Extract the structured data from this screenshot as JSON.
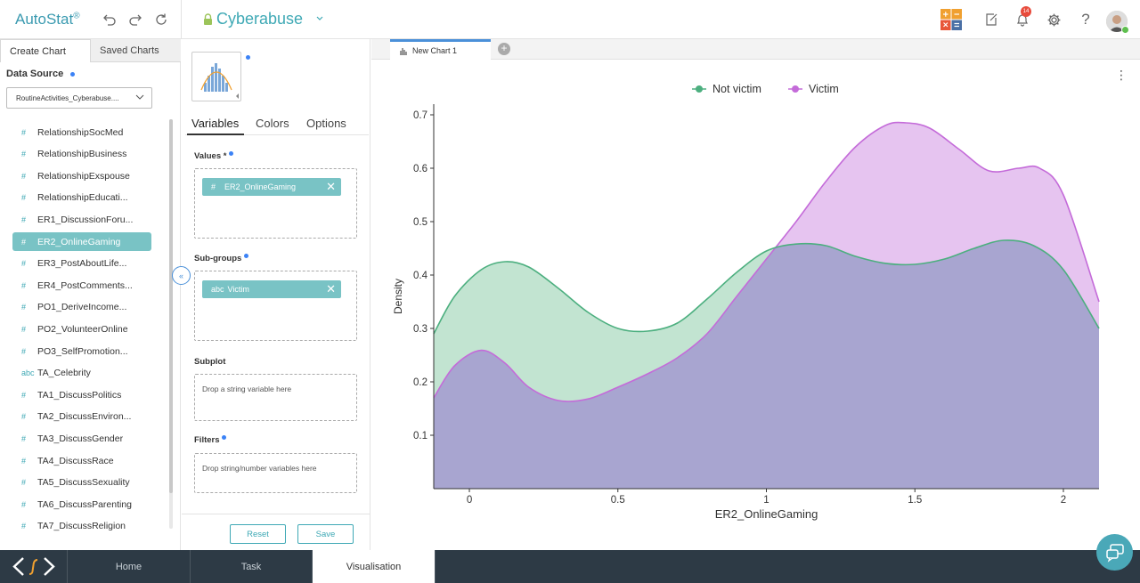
{
  "app": {
    "brand": "AutoStat",
    "brand_mark": "®",
    "project": "Cyberabuse",
    "notification_count": "14"
  },
  "left_panel": {
    "tabs": [
      "Create Chart",
      "Saved Charts"
    ],
    "data_source_label": "Data Source",
    "data_source_value": "RoutineActivities_Cyberabuse....",
    "variables": [
      {
        "type": "#",
        "name": "RelationshipSocMed"
      },
      {
        "type": "#",
        "name": "RelationshipBusiness"
      },
      {
        "type": "#",
        "name": "RelationshipExspouse"
      },
      {
        "type": "#",
        "name": "RelationshipEducati..."
      },
      {
        "type": "#",
        "name": "ER1_DiscussionForu..."
      },
      {
        "type": "#",
        "name": "ER2_OnlineGaming",
        "selected": true
      },
      {
        "type": "#",
        "name": "ER3_PostAboutLife..."
      },
      {
        "type": "#",
        "name": "ER4_PostComments..."
      },
      {
        "type": "#",
        "name": "PO1_DeriveIncome..."
      },
      {
        "type": "#",
        "name": "PO2_VolunteerOnline"
      },
      {
        "type": "#",
        "name": "PO3_SelfPromotion..."
      },
      {
        "type": "abc",
        "name": "TA_Celebrity"
      },
      {
        "type": "#",
        "name": "TA1_DiscussPolitics"
      },
      {
        "type": "#",
        "name": "TA2_DiscussEnviron..."
      },
      {
        "type": "#",
        "name": "TA3_DiscussGender"
      },
      {
        "type": "#",
        "name": "TA4_DiscussRace"
      },
      {
        "type": "#",
        "name": "TA5_DiscussSexuality"
      },
      {
        "type": "#",
        "name": "TA6_DiscussParenting"
      },
      {
        "type": "#",
        "name": "TA7_DiscussReligion"
      }
    ],
    "collapse_glyph": "«"
  },
  "mid_panel": {
    "tabs": [
      "Variables",
      "Colors",
      "Options"
    ],
    "values_label": "Values *",
    "values_pill": {
      "type": "#",
      "name": "ER2_OnlineGaming"
    },
    "subgroups_label": "Sub-groups",
    "subgroups_pill": {
      "type": "abc",
      "name": "Victim"
    },
    "subplot_label": "Subplot",
    "subplot_placeholder": "Drop a string variable here",
    "filters_label": "Filters",
    "filters_placeholder": "Drop string/number variables here",
    "reset_label": "Reset",
    "save_label": "Save"
  },
  "chart_tab": {
    "label": "New Chart 1"
  },
  "chart_data": {
    "type": "area",
    "xlabel": "ER2_OnlineGaming",
    "ylabel": "Density",
    "xlim": [
      -0.12,
      2.12
    ],
    "ylim": [
      0,
      0.72
    ],
    "xticks": [
      "0",
      "0.5",
      "1",
      "1.5",
      "2"
    ],
    "yticks": [
      "0.1",
      "0.2",
      "0.3",
      "0.4",
      "0.5",
      "0.6",
      "0.7"
    ],
    "legend_position": "top-center",
    "series": [
      {
        "name": "Victim",
        "color": "#c46bd9",
        "fill": "#e6c4f0",
        "x": [
          -0.12,
          -0.05,
          0.04,
          0.12,
          0.2,
          0.3,
          0.4,
          0.5,
          0.6,
          0.7,
          0.8,
          0.9,
          1.0,
          1.1,
          1.2,
          1.3,
          1.4,
          1.47,
          1.55,
          1.65,
          1.75,
          1.85,
          1.92,
          2.0,
          2.12
        ],
        "y": [
          0.17,
          0.23,
          0.259,
          0.235,
          0.19,
          0.165,
          0.168,
          0.19,
          0.215,
          0.245,
          0.29,
          0.36,
          0.43,
          0.5,
          0.575,
          0.64,
          0.68,
          0.685,
          0.675,
          0.635,
          0.595,
          0.6,
          0.6,
          0.55,
          0.35
        ]
      },
      {
        "name": "Not victim",
        "color": "#4caf7f",
        "fill": "#b7dfc9",
        "x": [
          -0.12,
          -0.05,
          0.04,
          0.12,
          0.2,
          0.3,
          0.4,
          0.5,
          0.6,
          0.7,
          0.8,
          0.9,
          1.0,
          1.1,
          1.2,
          1.3,
          1.4,
          1.5,
          1.6,
          1.7,
          1.8,
          1.9,
          2.0,
          2.12
        ],
        "y": [
          0.29,
          0.36,
          0.41,
          0.425,
          0.415,
          0.375,
          0.33,
          0.3,
          0.295,
          0.31,
          0.355,
          0.405,
          0.445,
          0.458,
          0.455,
          0.435,
          0.422,
          0.42,
          0.43,
          0.45,
          0.465,
          0.455,
          0.41,
          0.3
        ]
      }
    ]
  }
}
